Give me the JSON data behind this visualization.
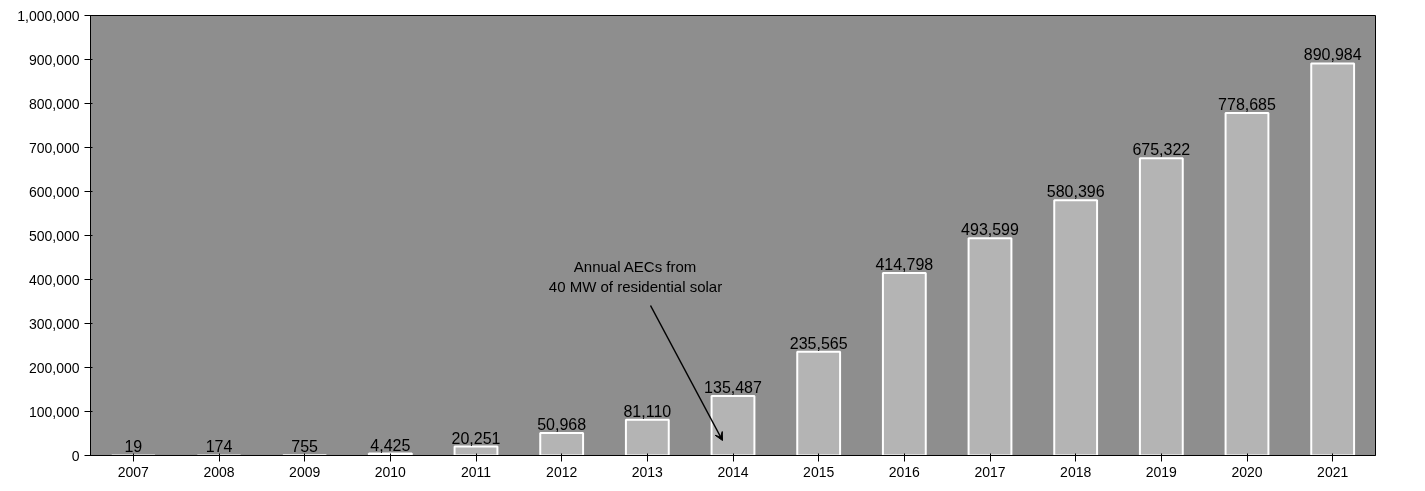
{
  "chart_data": {
    "type": "bar",
    "categories": [
      "2007",
      "2008",
      "2009",
      "2010",
      "2011",
      "2012",
      "2013",
      "2014",
      "2015",
      "2016",
      "2017",
      "2018",
      "2019",
      "2020",
      "2021"
    ],
    "values": [
      19,
      174,
      755,
      4425,
      20251,
      50968,
      81110,
      135487,
      235565,
      414798,
      493599,
      580396,
      675322,
      778685,
      890984
    ],
    "color": "#b4b4b4",
    "ylim": [
      0,
      1000000
    ],
    "yticks": [
      0,
      {
        "value": 100000,
        "label": "100,000"
      },
      {
        "value": 200000,
        "label": "200,000"
      },
      {
        "value": 300000,
        "label": "300,000"
      },
      {
        "value": 400000,
        "label": "400,000"
      },
      {
        "value": 500000,
        "label": "500,000"
      },
      {
        "value": 600000,
        "label": "600,000"
      },
      {
        "value": 700000,
        "label": "700,000"
      },
      {
        "value": 800000,
        "label": "800,000"
      },
      {
        "value": 900000,
        "label": "900,000"
      },
      {
        "value": 1000000,
        "label": "1,000,000"
      }
    ],
    "value_labels": [
      "19",
      "174",
      "755",
      "4,425",
      "20,251",
      "50,968",
      "81,110",
      "135,487",
      "235,565",
      "414,798",
      "493,599",
      "580,396",
      "675,322",
      "778,685",
      "890,984"
    ],
    "annotations": [
      "Annual AECs from\n40 MW of residential solar"
    ],
    "grid": false
  }
}
